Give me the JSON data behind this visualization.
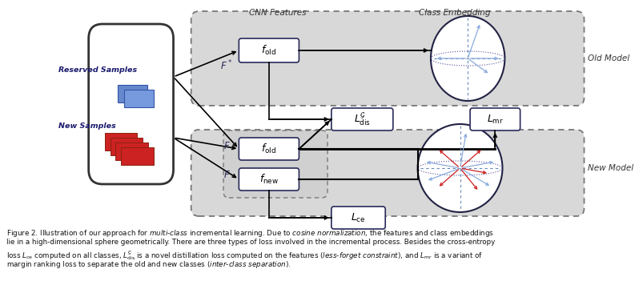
{
  "bg_color": "#ffffff",
  "fig_width": 7.98,
  "fig_height": 3.61,
  "title_cnn": "CNN Features",
  "title_cls": "Class Embedding",
  "label_old_model": "Old Model",
  "label_new_model": "New Model",
  "label_reserved": "Reserved Samples",
  "label_new_samples": "New Samples",
  "color_dark": "#2a2a5a",
  "color_gray_bg": "#d8d8d8",
  "color_text": "#1a1a6e",
  "color_orange": "#c8720a"
}
